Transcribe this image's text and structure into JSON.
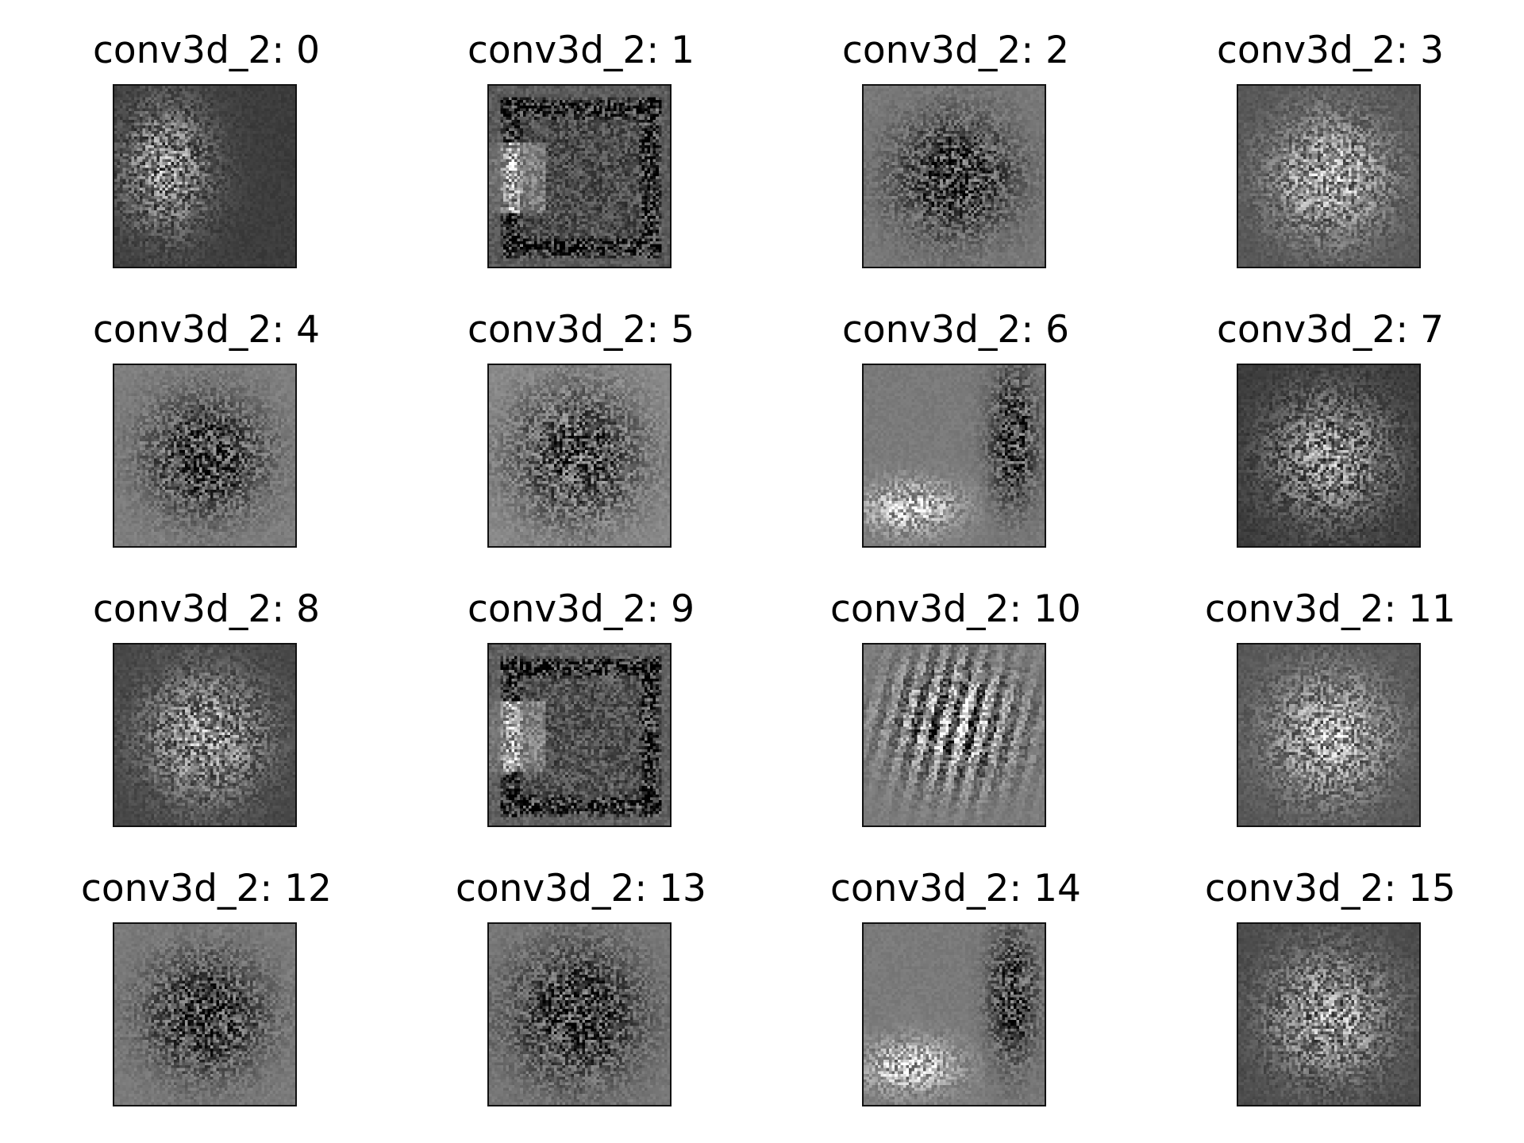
{
  "figure": {
    "background": "#ffffff",
    "image_style": "grayscale noisy filter visualization",
    "panels": [
      {
        "title": "conv3d_2: 0",
        "pattern": "blob-left",
        "base": "#3c3c3c"
      },
      {
        "title": "conv3d_2: 1",
        "pattern": "frame",
        "base": "#666666"
      },
      {
        "title": "conv3d_2: 2",
        "pattern": "center-dark",
        "base": "#7a7a7a"
      },
      {
        "title": "conv3d_2: 3",
        "pattern": "center-light",
        "base": "#555555"
      },
      {
        "title": "conv3d_2: 4",
        "pattern": "center-dark",
        "base": "#808080"
      },
      {
        "title": "conv3d_2: 5",
        "pattern": "center-dark-streak",
        "base": "#8c8c8c"
      },
      {
        "title": "conv3d_2: 6",
        "pattern": "right-dark-bottom-light",
        "base": "#7a7a7a"
      },
      {
        "title": "conv3d_2: 7",
        "pattern": "center-light",
        "base": "#3a3a3a"
      },
      {
        "title": "conv3d_2: 8",
        "pattern": "center-light",
        "base": "#454545"
      },
      {
        "title": "conv3d_2: 9",
        "pattern": "frame",
        "base": "#6a6a6a"
      },
      {
        "title": "conv3d_2: 10",
        "pattern": "streaks",
        "base": "#7c7c7c"
      },
      {
        "title": "conv3d_2: 11",
        "pattern": "center-light",
        "base": "#555555"
      },
      {
        "title": "conv3d_2: 12",
        "pattern": "center-dark",
        "base": "#7c7c7c"
      },
      {
        "title": "conv3d_2: 13",
        "pattern": "center-dark-streak",
        "base": "#7a7a7a"
      },
      {
        "title": "conv3d_2: 14",
        "pattern": "right-dark-bottom-light",
        "base": "#7a7a7a"
      },
      {
        "title": "conv3d_2: 15",
        "pattern": "center-light",
        "base": "#4a4a4a"
      }
    ]
  }
}
